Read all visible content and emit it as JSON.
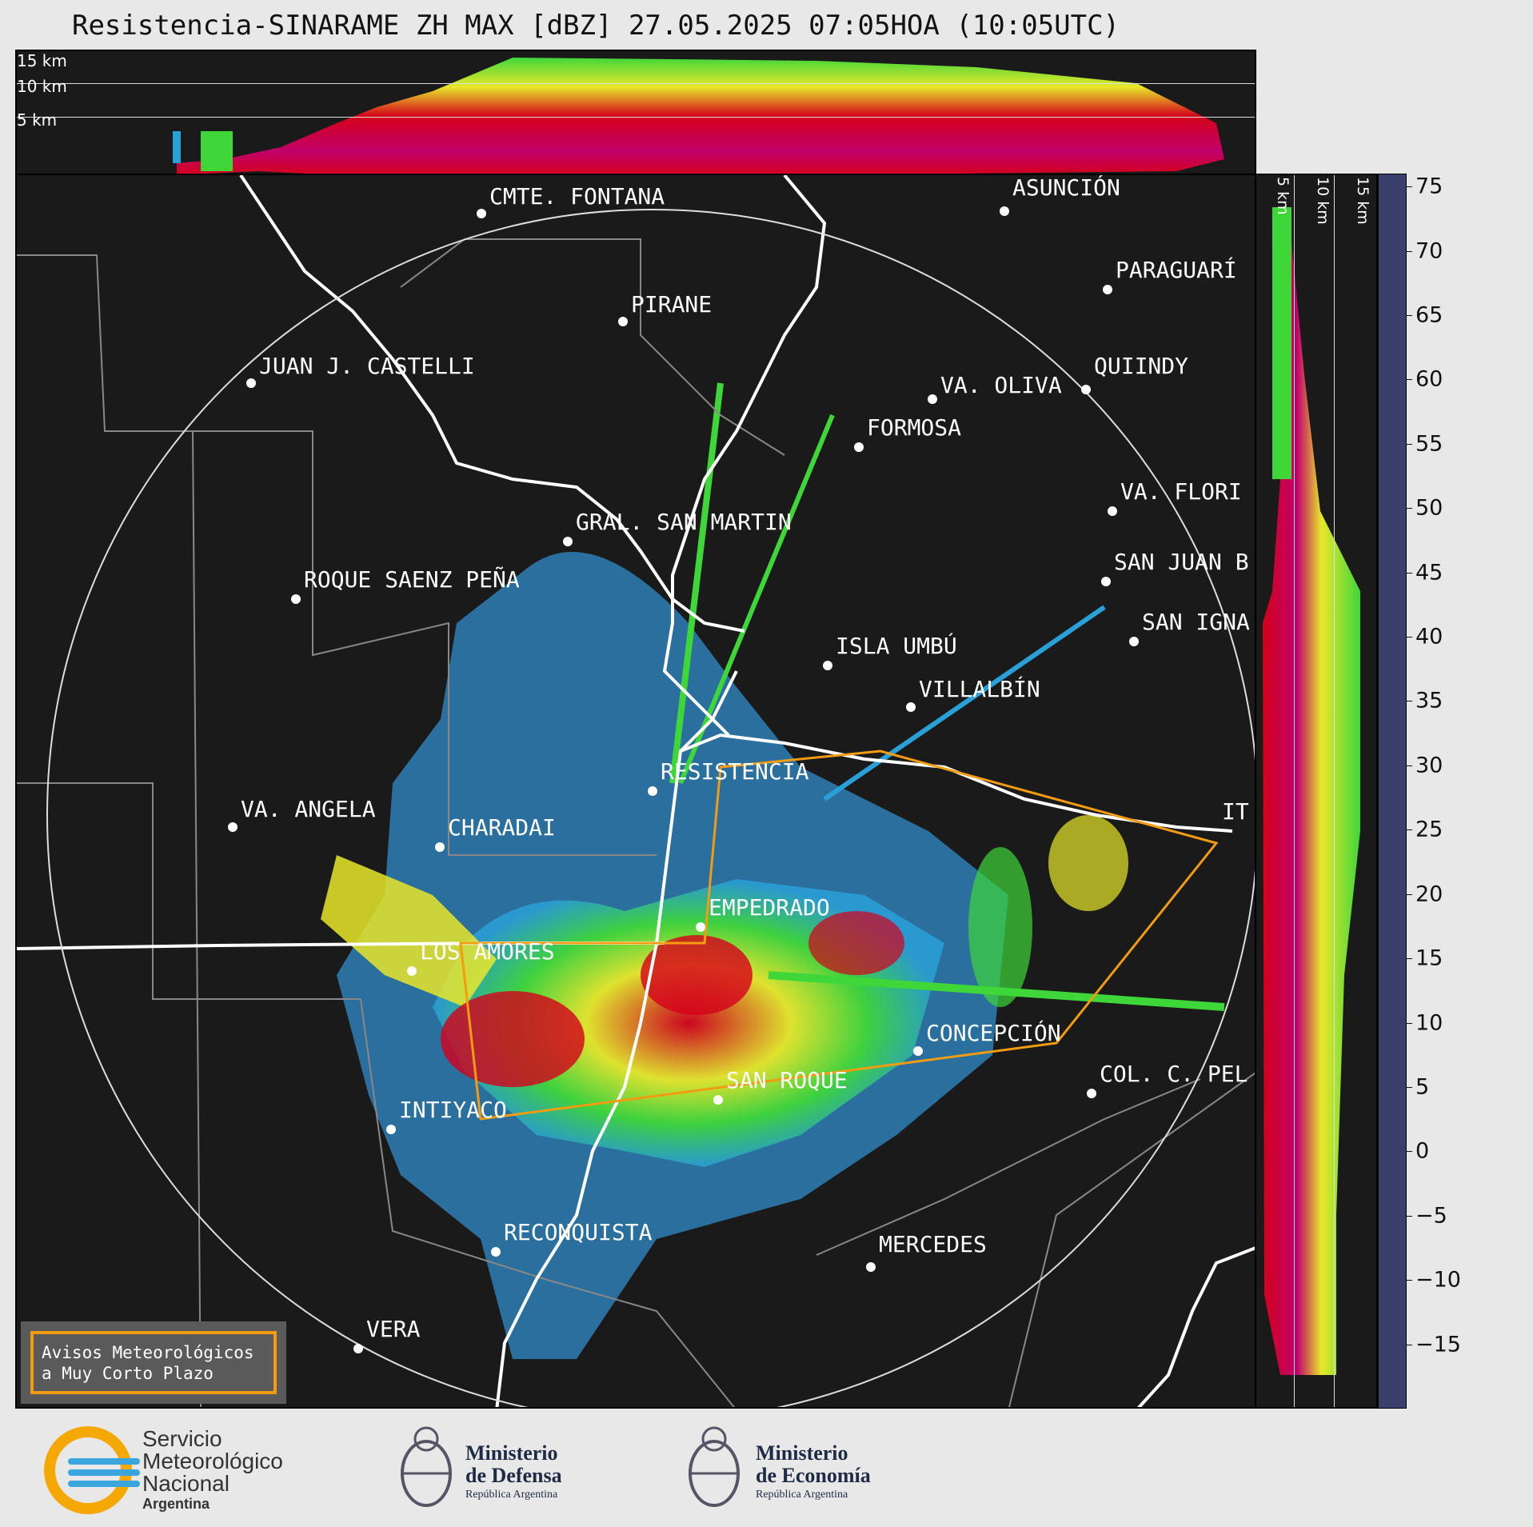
{
  "title": "Resistencia-SINARAME ZH MAX [dBZ] 27.05.2025 07:05HOA (10:05UTC)",
  "top_panel": {
    "altitude_labels": [
      "15 km",
      "10 km",
      "5 km"
    ]
  },
  "side_panel": {
    "altitude_labels": [
      "5 km",
      "10 km",
      "15 km"
    ]
  },
  "places": [
    {
      "name": "CMTE. FONTANA"
    },
    {
      "name": "PIRANE"
    },
    {
      "name": "ASUNCIÓN"
    },
    {
      "name": "PARAGUARÍ"
    },
    {
      "name": "JUAN J. CASTELLI"
    },
    {
      "name": "VA. OLIVA"
    },
    {
      "name": "QUIINDY"
    },
    {
      "name": "FORMOSA"
    },
    {
      "name": "VA. FLORI"
    },
    {
      "name": "GRAL. SAN MARTIN"
    },
    {
      "name": "SAN JUAN B"
    },
    {
      "name": "ROQUE SAENZ PEÑA"
    },
    {
      "name": "SAN IGNA"
    },
    {
      "name": "ISLA UMBÚ"
    },
    {
      "name": "VILLALBÍN"
    },
    {
      "name": "RESISTENCIA"
    },
    {
      "name": "VA. ANGELA"
    },
    {
      "name": "CHARADAI"
    },
    {
      "name": "IT"
    },
    {
      "name": "EMPEDRADO"
    },
    {
      "name": "LOS AMORES"
    },
    {
      "name": "CONCEPCIÓN"
    },
    {
      "name": "COL. C. PEL"
    },
    {
      "name": "SAN ROQUE"
    },
    {
      "name": "INTIYACO"
    },
    {
      "name": "RECONQUISTA"
    },
    {
      "name": "MERCEDES"
    },
    {
      "name": "VERA"
    }
  ],
  "colorbar": {
    "ticks": [
      "75",
      "70",
      "65",
      "60",
      "55",
      "50",
      "45",
      "40",
      "35",
      "30",
      "25",
      "20",
      "15",
      "10",
      "5",
      "0",
      "−5",
      "−10",
      "−15"
    ],
    "range": [
      -20,
      76
    ],
    "stops": [
      {
        "from": -20,
        "to": -10,
        "color": "#3a3f6b"
      },
      {
        "from": -10,
        "to": 0,
        "color": "#3f5f8f"
      },
      {
        "from": 0,
        "to": 10,
        "color": "#2e7fb5"
      },
      {
        "from": 10,
        "to": 18,
        "color": "#2aa0d8"
      },
      {
        "from": 18,
        "to": 24,
        "color": "#3fd63a"
      },
      {
        "from": 24,
        "to": 30,
        "color": "#1f7a1f"
      },
      {
        "from": 30,
        "to": 36,
        "color": "#e8e82a"
      },
      {
        "from": 36,
        "to": 42,
        "color": "#e08f12"
      },
      {
        "from": 42,
        "to": 50,
        "color": "#d4001a"
      },
      {
        "from": 50,
        "to": 55,
        "color": "#c0006a"
      },
      {
        "from": 55,
        "to": 59,
        "color": "#b300b3"
      },
      {
        "from": 59,
        "to": 61,
        "color": "#ffffff"
      },
      {
        "from": 61,
        "to": 76,
        "color": "#8fdcb8"
      }
    ]
  },
  "legend": {
    "line1": "Avisos Meteorológicos",
    "line2": "a Muy Corto Plazo"
  },
  "footer": {
    "smn": {
      "line1": "Servicio",
      "line2": "Meteorológico",
      "line3": "Nacional",
      "line4": "Argentina"
    },
    "defensa": {
      "line1": "Ministerio",
      "line2": "de Defensa",
      "line3": "República Argentina"
    },
    "economia": {
      "line1": "Ministerio",
      "line2": "de Economía",
      "line3": "República Argentina"
    }
  },
  "colors": {
    "background": "#1a1a1a",
    "warning_polygon": "#f39c12",
    "rivers": "#ffffff",
    "borders": "#888888"
  }
}
